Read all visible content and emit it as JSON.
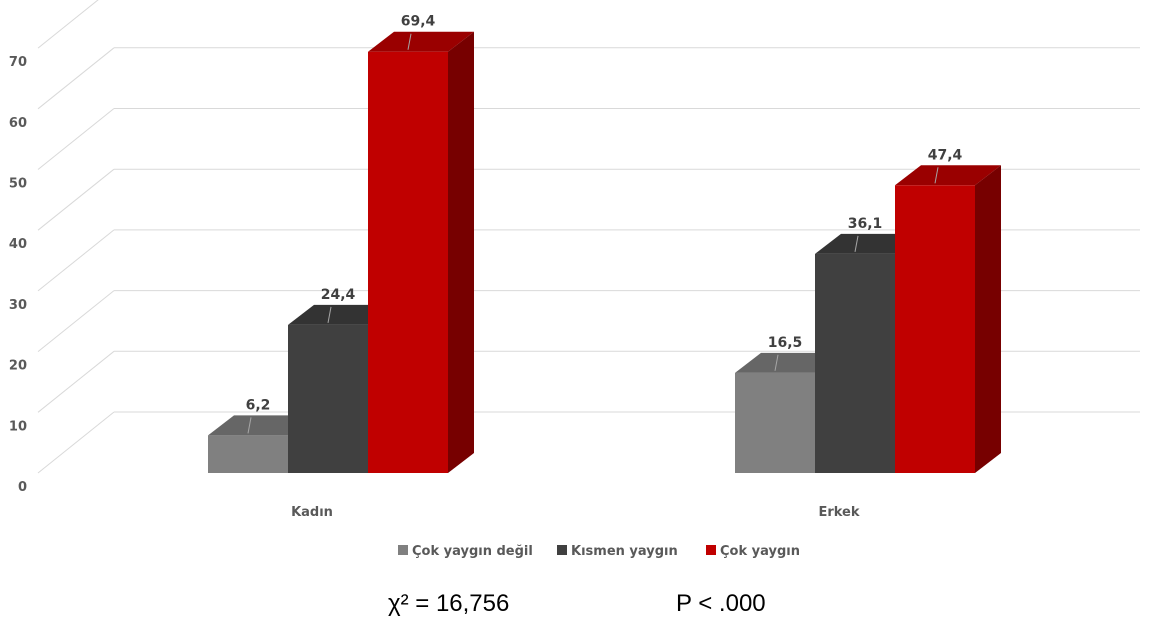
{
  "chart_data": {
    "type": "bar",
    "style": "3d-clustered-column",
    "categories": [
      "Kadın",
      "Erkek"
    ],
    "series": [
      {
        "name": "Çok yaygın değil",
        "values": [
          6.2,
          16.5
        ],
        "color": "#808080",
        "labels": [
          "6,2",
          "16,5"
        ]
      },
      {
        "name": "Kısmen yaygın",
        "values": [
          24.4,
          36.1
        ],
        "color": "#404040",
        "labels": [
          "24,4",
          "36,1"
        ]
      },
      {
        "name": "Çok yaygın",
        "values": [
          69.4,
          47.4
        ],
        "color": "#c00000",
        "labels": [
          "69,4",
          "47,4"
        ]
      }
    ],
    "yticks": [
      "0",
      "10",
      "20",
      "30",
      "40",
      "50",
      "60",
      "70"
    ],
    "ylim": [
      0,
      70
    ],
    "grid": true,
    "legend": "bottom"
  },
  "stats": {
    "chi_square": "χ² = 16,756",
    "p_value": "P < .000"
  }
}
